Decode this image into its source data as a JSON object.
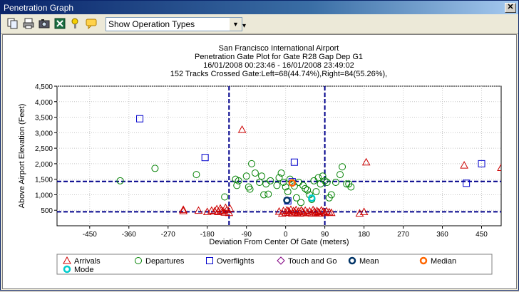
{
  "window": {
    "title": "Penetration Graph",
    "close_label": "✕"
  },
  "toolbar": {
    "buttons": [
      "copy-icon",
      "print-icon",
      "camera-icon",
      "excel-icon",
      "options-icon",
      "comment-icon"
    ],
    "operation_select": {
      "value": "Show Operation Types"
    }
  },
  "colors": {
    "arrivals": "#cc0000",
    "departures": "#008000",
    "overflights": "#0000cc",
    "touch_and_go": "#800080",
    "mean": "#003366",
    "median": "#ff6600",
    "mode": "#00cccc",
    "gate_lines": "#00008b"
  },
  "chart_data": {
    "type": "scatter",
    "title_lines": [
      "San Francisco International Airport",
      "Penetration Gate Plot for Gate R28 Gap Dep G1",
      "16/01/2008 00:23:46 - 16/01/2008 23:49:02",
      "152 Tracks Crossed Gate:Left=68(44.74%),Right=84(55.26%),"
    ],
    "xlabel": "Deviation From Center Of Gate (meters)",
    "ylabel": "Above Airport Elevation (Feet)",
    "xlim": [
      -525,
      495
    ],
    "ylim": [
      0,
      4500
    ],
    "x_ticks": [
      -450,
      -360,
      -270,
      -180,
      -90,
      0,
      90,
      180,
      270,
      360,
      450
    ],
    "y_ticks": [
      500,
      1000,
      1500,
      2000,
      2500,
      3000,
      3500,
      4000,
      4500
    ],
    "x_tick_labels": [
      "-450",
      "-360",
      "-270",
      "-180",
      "-90",
      "0",
      "90",
      "180",
      "270",
      "360",
      "450"
    ],
    "y_tick_labels": [
      "500",
      "1,000",
      "1,500",
      "2,000",
      "2,500",
      "3,000",
      "3,500",
      "4,000",
      "4,500"
    ],
    "grid": true,
    "gate_lines": {
      "x": [
        -130,
        90
      ],
      "y": [
        450,
        1430
      ]
    },
    "legend": [
      "Arrivals",
      "Departures",
      "Overflights",
      "Touch and Go",
      "Mean",
      "Median",
      "Mode"
    ],
    "legend_position": "bottom",
    "series": [
      {
        "name": "Arrivals",
        "marker": "triangle",
        "points": [
          [
            -235,
            520
          ],
          [
            -235,
            480
          ],
          [
            -200,
            490
          ],
          [
            -180,
            450
          ],
          [
            -170,
            490
          ],
          [
            -163,
            470
          ],
          [
            -158,
            540
          ],
          [
            -155,
            450
          ],
          [
            -150,
            560
          ],
          [
            -148,
            500
          ],
          [
            -145,
            470
          ],
          [
            -140,
            430
          ],
          [
            -138,
            580
          ],
          [
            -135,
            510
          ],
          [
            -130,
            420
          ],
          [
            -128,
            560
          ],
          [
            -100,
            3100
          ],
          [
            -15,
            460
          ],
          [
            -8,
            400
          ],
          [
            -5,
            480
          ],
          [
            0,
            420
          ],
          [
            3,
            500
          ],
          [
            6,
            470
          ],
          [
            9,
            430
          ],
          [
            12,
            520
          ],
          [
            15,
            400
          ],
          [
            18,
            480
          ],
          [
            21,
            440
          ],
          [
            24,
            510
          ],
          [
            27,
            420
          ],
          [
            30,
            470
          ],
          [
            33,
            400
          ],
          [
            36,
            500
          ],
          [
            39,
            450
          ],
          [
            42,
            410
          ],
          [
            45,
            490
          ],
          [
            50,
            430
          ],
          [
            55,
            470
          ],
          [
            60,
            400
          ],
          [
            63,
            510
          ],
          [
            66,
            460
          ],
          [
            69,
            420
          ],
          [
            72,
            480
          ],
          [
            75,
            440
          ],
          [
            78,
            400
          ],
          [
            82,
            500
          ],
          [
            86,
            460
          ],
          [
            90,
            420
          ],
          [
            94,
            470
          ],
          [
            100,
            440
          ],
          [
            105,
            420
          ],
          [
            170,
            400
          ],
          [
            180,
            450
          ],
          [
            185,
            2050
          ],
          [
            410,
            1950
          ],
          [
            495,
            1870
          ]
        ]
      },
      {
        "name": "Departures",
        "marker": "circle",
        "points": [
          [
            -380,
            1450
          ],
          [
            -300,
            1850
          ],
          [
            -205,
            1650
          ],
          [
            -140,
            930
          ],
          [
            -115,
            1500
          ],
          [
            -112,
            1300
          ],
          [
            -108,
            1450
          ],
          [
            -90,
            1600
          ],
          [
            -85,
            1250
          ],
          [
            -82,
            1180
          ],
          [
            -78,
            2000
          ],
          [
            -70,
            1700
          ],
          [
            -60,
            1400
          ],
          [
            -55,
            1600
          ],
          [
            -50,
            1000
          ],
          [
            -45,
            1350
          ],
          [
            -40,
            1020
          ],
          [
            -35,
            1450
          ],
          [
            -20,
            1300
          ],
          [
            -15,
            1550
          ],
          [
            -10,
            1700
          ],
          [
            -5,
            1400
          ],
          [
            0,
            1250
          ],
          [
            5,
            1100
          ],
          [
            10,
            1500
          ],
          [
            15,
            1380
          ],
          [
            20,
            1280
          ],
          [
            25,
            900
          ],
          [
            30,
            1400
          ],
          [
            35,
            750
          ],
          [
            40,
            1300
          ],
          [
            45,
            1200
          ],
          [
            50,
            1150
          ],
          [
            55,
            1000
          ],
          [
            60,
            850
          ],
          [
            65,
            1450
          ],
          [
            70,
            1100
          ],
          [
            75,
            1550
          ],
          [
            80,
            1350
          ],
          [
            85,
            1600
          ],
          [
            90,
            1450
          ],
          [
            95,
            1400
          ],
          [
            100,
            900
          ],
          [
            105,
            1000
          ],
          [
            115,
            1400
          ],
          [
            125,
            1650
          ],
          [
            130,
            1900
          ],
          [
            140,
            1350
          ],
          [
            145,
            1350
          ],
          [
            150,
            1250
          ]
        ]
      },
      {
        "name": "Overflights",
        "marker": "square",
        "points": [
          [
            -335,
            3450
          ],
          [
            -185,
            2200
          ],
          [
            20,
            2050
          ],
          [
            15,
            1420
          ],
          [
            5,
            800
          ],
          [
            450,
            2000
          ],
          [
            415,
            1370
          ]
        ]
      },
      {
        "name": "Touch and Go",
        "marker": "diamond",
        "points": []
      },
      {
        "name": "Mean",
        "marker": "ring",
        "points": [
          [
            3,
            820
          ]
        ]
      },
      {
        "name": "Median",
        "marker": "ring",
        "points": [
          [
            15,
            1380
          ]
        ]
      },
      {
        "name": "Mode",
        "marker": "ring",
        "points": [
          [
            60,
            890
          ]
        ]
      }
    ]
  }
}
